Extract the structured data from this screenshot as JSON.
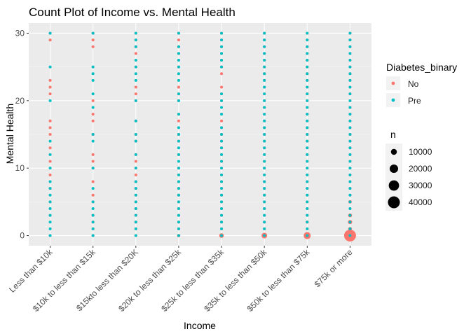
{
  "chart_data": {
    "type": "scatter",
    "title": "Count Plot of Income vs. Mental Health",
    "xlabel": "Income",
    "ylabel": "Mental Health",
    "categories": [
      "Less than $10k",
      "$10k to less than $15k",
      "$15kto less than $20K",
      "$20k to less than $25k",
      "$25k to less than $35k",
      "$35k to less than $50k",
      "$50k to less than $75k",
      "$75k or more"
    ],
    "ylim": [
      -1.5,
      31.5
    ],
    "yticks": [
      0,
      10,
      20,
      30
    ],
    "grid": true,
    "series": [
      {
        "name": "No",
        "color": "#F8766D",
        "points": [
          {
            "cat": 0,
            "ys": [
              30,
              29,
              23,
              22,
              21,
              17,
              16,
              15,
              13,
              11,
              9,
              7,
              5,
              3,
              0
            ],
            "n": [
              120,
              60,
              40,
              40,
              40,
              40,
              40,
              150,
              40,
              40,
              60,
              100,
              200,
              300,
              1000
            ]
          },
          {
            "cat": 1,
            "ys": [
              30,
              29,
              28,
              20,
              18,
              17,
              15,
              12,
              11,
              10,
              8,
              6,
              5,
              3,
              2,
              1,
              0
            ],
            "n": [
              150,
              60,
              40,
              150,
              40,
              40,
              150,
              40,
              40,
              200,
              60,
              60,
              200,
              300,
              400,
              300,
              1500
            ]
          },
          {
            "cat": 2,
            "ys": [
              30,
              29,
              28,
              27,
              25,
              22,
              21,
              20,
              17,
              15,
              14,
              12,
              11,
              10,
              9,
              8,
              7,
              6,
              5,
              4,
              3,
              2,
              1,
              0
            ],
            "n": [
              200,
              60,
              40,
              40,
              100,
              40,
              40,
              200,
              40,
              200,
              40,
              60,
              40,
              250,
              40,
              80,
              80,
              60,
              300,
              150,
              400,
              500,
              400,
              2000
            ]
          },
          {
            "cat": 3,
            "ys": [
              30,
              29,
              28,
              27,
              25,
              22,
              21,
              20,
              18,
              17,
              15,
              14,
              12,
              10,
              9,
              8,
              7,
              6,
              5,
              4,
              3,
              2,
              1,
              0
            ],
            "n": [
              300,
              60,
              40,
              40,
              150,
              40,
              40,
              250,
              40,
              40,
              300,
              40,
              60,
              400,
              40,
              100,
              100,
              80,
              500,
              200,
              600,
              700,
              600,
              3000
            ]
          },
          {
            "cat": 4,
            "ys": [
              30,
              29,
              28,
              27,
              26,
              25,
              24,
              22,
              21,
              20,
              18,
              17,
              16,
              15,
              14,
              13,
              12,
              11,
              10,
              9,
              8,
              7,
              6,
              5,
              4,
              3,
              2,
              1,
              0
            ],
            "n": [
              500,
              100,
              60,
              60,
              40,
              250,
              40,
              40,
              40,
              400,
              60,
              40,
              40,
              500,
              60,
              40,
              80,
              40,
              700,
              60,
              150,
              200,
              150,
              900,
              400,
              1100,
              1300,
              1000,
              6000
            ]
          },
          {
            "cat": 5,
            "ys": [
              30,
              29,
              28,
              27,
              26,
              25,
              24,
              23,
              22,
              21,
              20,
              19,
              18,
              17,
              16,
              15,
              14,
              13,
              12,
              11,
              10,
              9,
              8,
              7,
              6,
              5,
              4,
              3,
              2,
              1,
              0
            ],
            "n": [
              600,
              100,
              80,
              60,
              40,
              300,
              40,
              40,
              60,
              40,
              500,
              40,
              80,
              60,
              60,
              700,
              80,
              40,
              120,
              40,
              900,
              80,
              200,
              300,
              200,
              1300,
              600,
              1500,
              1800,
              1400,
              9000
            ]
          },
          {
            "cat": 6,
            "ys": [
              30,
              29,
              28,
              27,
              26,
              25,
              24,
              23,
              22,
              21,
              20,
              19,
              18,
              17,
              16,
              15,
              14,
              13,
              12,
              11,
              10,
              9,
              8,
              7,
              6,
              5,
              4,
              3,
              2,
              1,
              0
            ],
            "n": [
              700,
              100,
              80,
              60,
              40,
              400,
              40,
              40,
              80,
              60,
              700,
              40,
              100,
              80,
              80,
              900,
              100,
              40,
              150,
              40,
              1200,
              100,
              300,
              400,
              300,
              1800,
              900,
              2200,
              2600,
              2000,
              14000
            ]
          },
          {
            "cat": 7,
            "ys": [
              30,
              29,
              28,
              27,
              26,
              25,
              24,
              23,
              22,
              21,
              20,
              19,
              18,
              17,
              16,
              15,
              14,
              13,
              12,
              11,
              10,
              9,
              8,
              7,
              6,
              5,
              4,
              3,
              2,
              1,
              0
            ],
            "n": [
              1000,
              150,
              120,
              100,
              60,
              600,
              60,
              60,
              120,
              80,
              1100,
              60,
              150,
              120,
              120,
              1500,
              150,
              60,
              250,
              60,
              2200,
              150,
              500,
              700,
              500,
              3300,
              1600,
              4200,
              5000,
              4000,
              40000
            ]
          }
        ]
      },
      {
        "name": "Pre",
        "color": "#00BFC4",
        "points": [
          {
            "cat": 0,
            "ys": [
              30,
              25,
              20,
              14,
              12,
              10,
              8,
              7,
              6,
              5,
              4,
              3,
              2,
              1,
              0
            ],
            "n": [
              30,
              10,
              15,
              10,
              10,
              20,
              10,
              10,
              10,
              15,
              10,
              20,
              20,
              15,
              60
            ]
          },
          {
            "cat": 1,
            "ys": [
              30,
              25,
              24,
              23,
              21,
              19,
              15,
              14,
              10,
              7,
              5,
              4,
              3,
              2,
              1,
              0
            ],
            "n": [
              30,
              10,
              10,
              10,
              10,
              10,
              15,
              10,
              20,
              10,
              15,
              10,
              20,
              20,
              15,
              80
            ]
          },
          {
            "cat": 2,
            "ys": [
              30,
              29,
              28,
              26,
              25,
              24,
              23,
              20,
              17,
              15,
              14,
              12,
              10,
              8,
              7,
              6,
              5,
              4,
              3,
              2,
              1,
              0
            ],
            "n": [
              40,
              10,
              10,
              10,
              15,
              10,
              10,
              20,
              10,
              20,
              10,
              10,
              25,
              10,
              10,
              10,
              20,
              10,
              25,
              25,
              20,
              100
            ]
          },
          {
            "cat": 3,
            "ys": [
              30,
              28,
              27,
              26,
              25,
              24,
              23,
              21,
              20,
              18,
              16,
              15,
              14,
              13,
              12,
              11,
              10,
              9,
              8,
              7,
              6,
              5,
              4,
              3,
              2,
              1,
              0
            ],
            "n": [
              50,
              10,
              10,
              10,
              20,
              10,
              10,
              10,
              25,
              10,
              10,
              25,
              10,
              10,
              10,
              10,
              30,
              10,
              15,
              15,
              10,
              30,
              15,
              35,
              35,
              30,
              150
            ]
          },
          {
            "cat": 4,
            "ys": [
              30,
              29,
              28,
              27,
              26,
              25,
              21,
              20,
              19,
              18,
              16,
              15,
              14,
              13,
              12,
              11,
              10,
              9,
              8,
              7,
              6,
              5,
              4,
              3,
              2,
              1,
              0
            ],
            "n": [
              80,
              15,
              15,
              10,
              10,
              30,
              10,
              40,
              10,
              15,
              10,
              40,
              15,
              10,
              15,
              10,
              50,
              10,
              20,
              25,
              15,
              50,
              25,
              60,
              60,
              50,
              300
            ]
          },
          {
            "cat": 5,
            "ys": [
              30,
              29,
              28,
              27,
              26,
              25,
              24,
              23,
              22,
              21,
              20,
              19,
              18,
              17,
              16,
              15,
              14,
              13,
              12,
              11,
              10,
              9,
              8,
              7,
              6,
              5,
              4,
              3,
              2,
              1,
              0
            ],
            "n": [
              100,
              20,
              20,
              15,
              10,
              40,
              10,
              10,
              15,
              10,
              60,
              10,
              20,
              15,
              15,
              60,
              20,
              10,
              20,
              10,
              80,
              15,
              30,
              40,
              25,
              80,
              40,
              90,
              90,
              80,
              500
            ]
          },
          {
            "cat": 6,
            "ys": [
              30,
              29,
              28,
              27,
              26,
              25,
              24,
              23,
              22,
              21,
              20,
              19,
              18,
              17,
              16,
              15,
              14,
              13,
              12,
              11,
              10,
              9,
              8,
              7,
              6,
              5,
              4,
              3,
              2,
              1,
              0
            ],
            "n": [
              120,
              20,
              20,
              15,
              10,
              50,
              10,
              10,
              20,
              10,
              80,
              10,
              25,
              20,
              20,
              80,
              25,
              10,
              30,
              10,
              100,
              20,
              40,
              50,
              35,
              110,
              50,
              130,
              130,
              110,
              800
            ]
          },
          {
            "cat": 7,
            "ys": [
              30,
              29,
              28,
              27,
              26,
              25,
              24,
              23,
              22,
              21,
              20,
              19,
              18,
              17,
              16,
              15,
              14,
              13,
              12,
              11,
              10,
              9,
              8,
              7,
              6,
              5,
              4,
              3,
              2,
              1,
              0
            ],
            "n": [
              200,
              30,
              30,
              25,
              15,
              80,
              15,
              15,
              30,
              15,
              130,
              15,
              40,
              30,
              30,
              150,
              40,
              15,
              50,
              15,
              200,
              30,
              60,
              80,
              60,
              220,
              90,
              260,
              280,
              230,
              1800
            ]
          }
        ]
      }
    ],
    "legend_color": {
      "title": "Diabetes_binary",
      "entries": [
        "No",
        "Pre"
      ]
    },
    "legend_size": {
      "title": "n",
      "breaks": [
        10000,
        20000,
        30000,
        40000
      ],
      "labels": [
        "10000",
        "20000",
        "30000",
        "40000"
      ]
    },
    "legend_placement": "right"
  }
}
